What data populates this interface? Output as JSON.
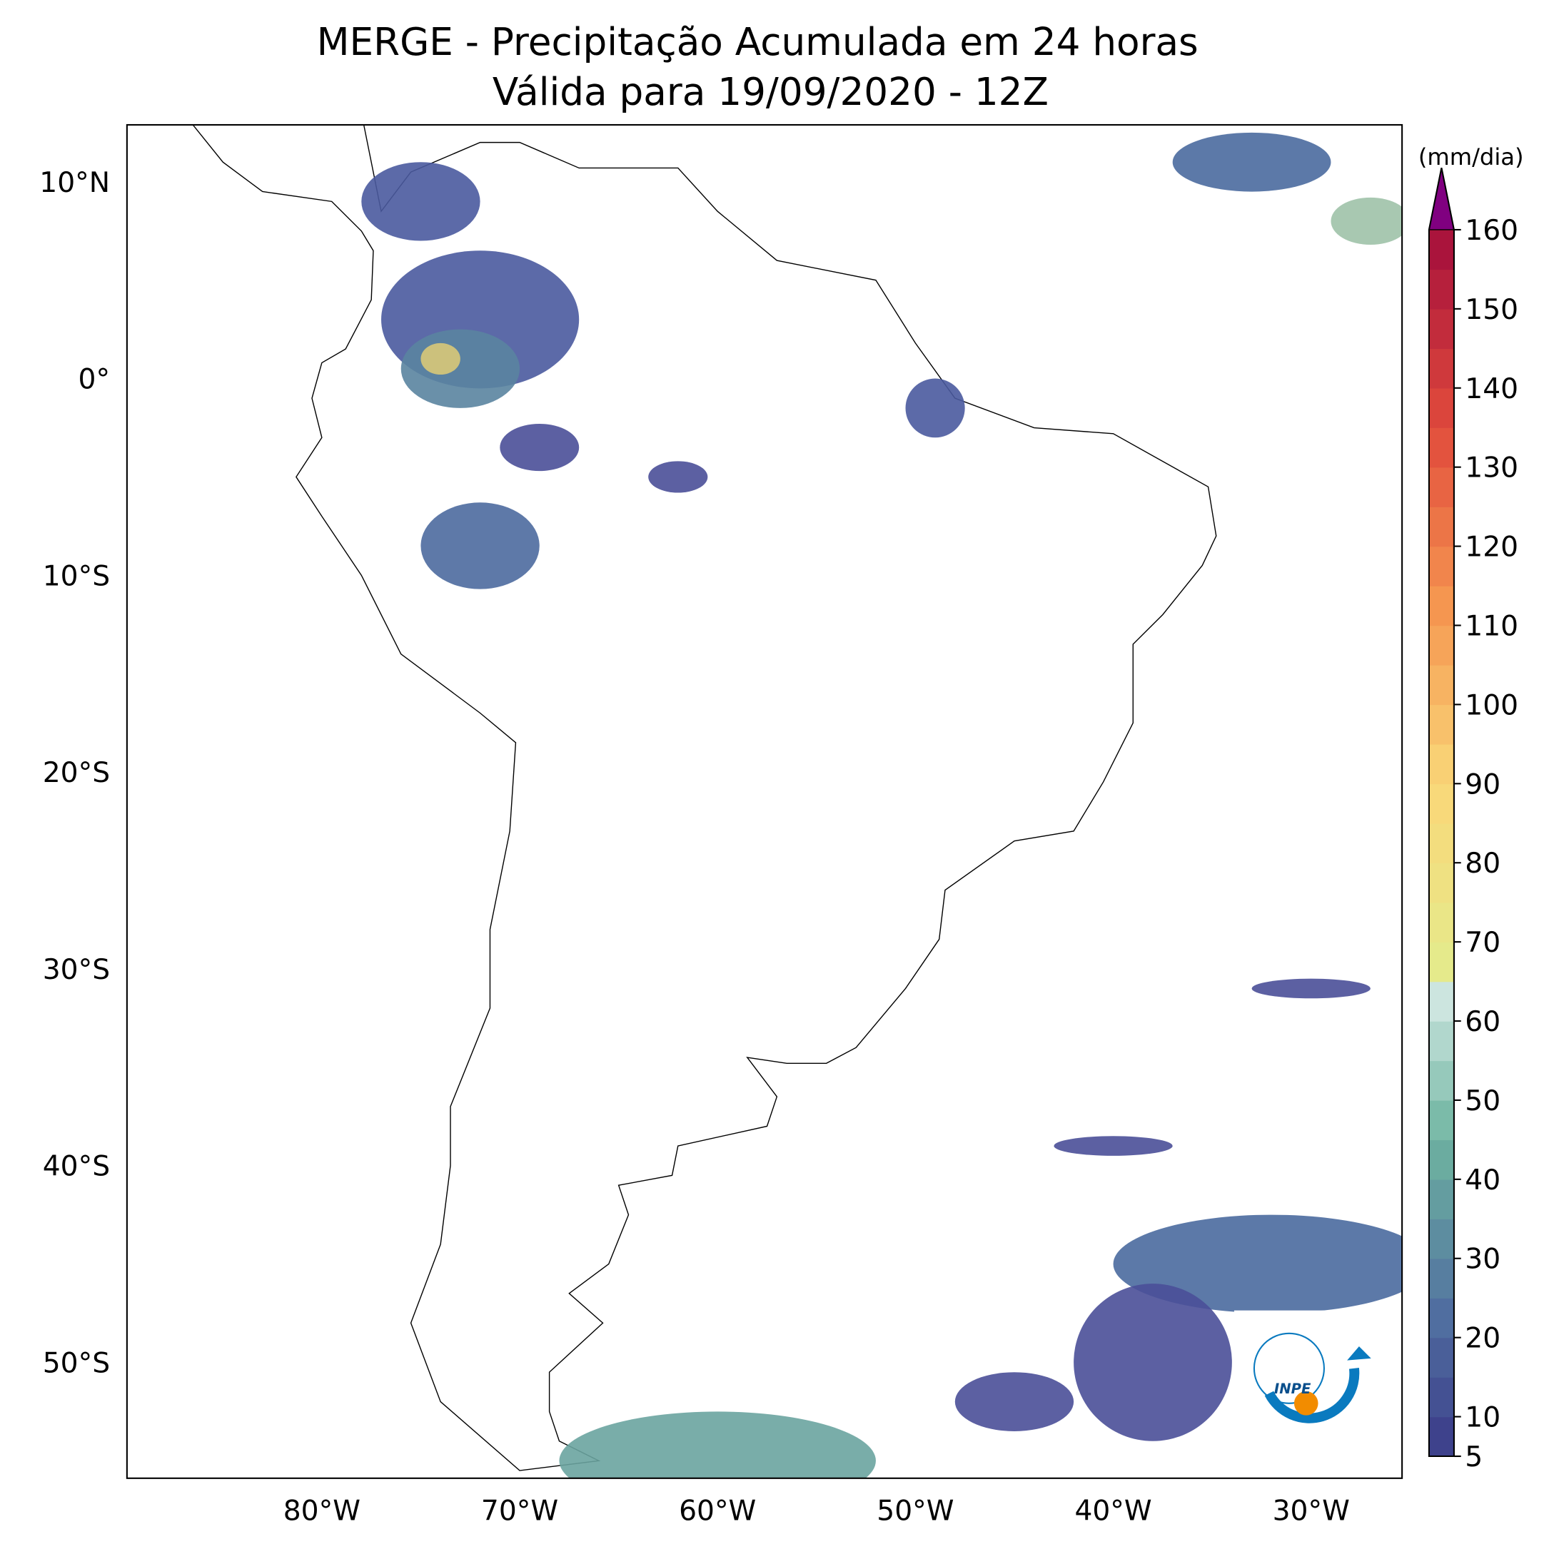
{
  "title": "MERGE - Precipitação Acumulada em 24 horas",
  "subtitle": "Válida para 19/09/2020 - 12Z",
  "lat_labels": [
    "10°N",
    "0°",
    "10°S",
    "20°S",
    "30°S",
    "40°S",
    "50°S"
  ],
  "lon_labels": [
    "80°W",
    "70°W",
    "60°W",
    "50°W",
    "40°W",
    "30°W"
  ],
  "colorbar": {
    "label": "(mm/dia)",
    "ticks": [
      5,
      10,
      20,
      30,
      40,
      50,
      60,
      70,
      80,
      90,
      100,
      110,
      120,
      130,
      140,
      150,
      160
    ]
  },
  "logo_text": "INPE"
}
